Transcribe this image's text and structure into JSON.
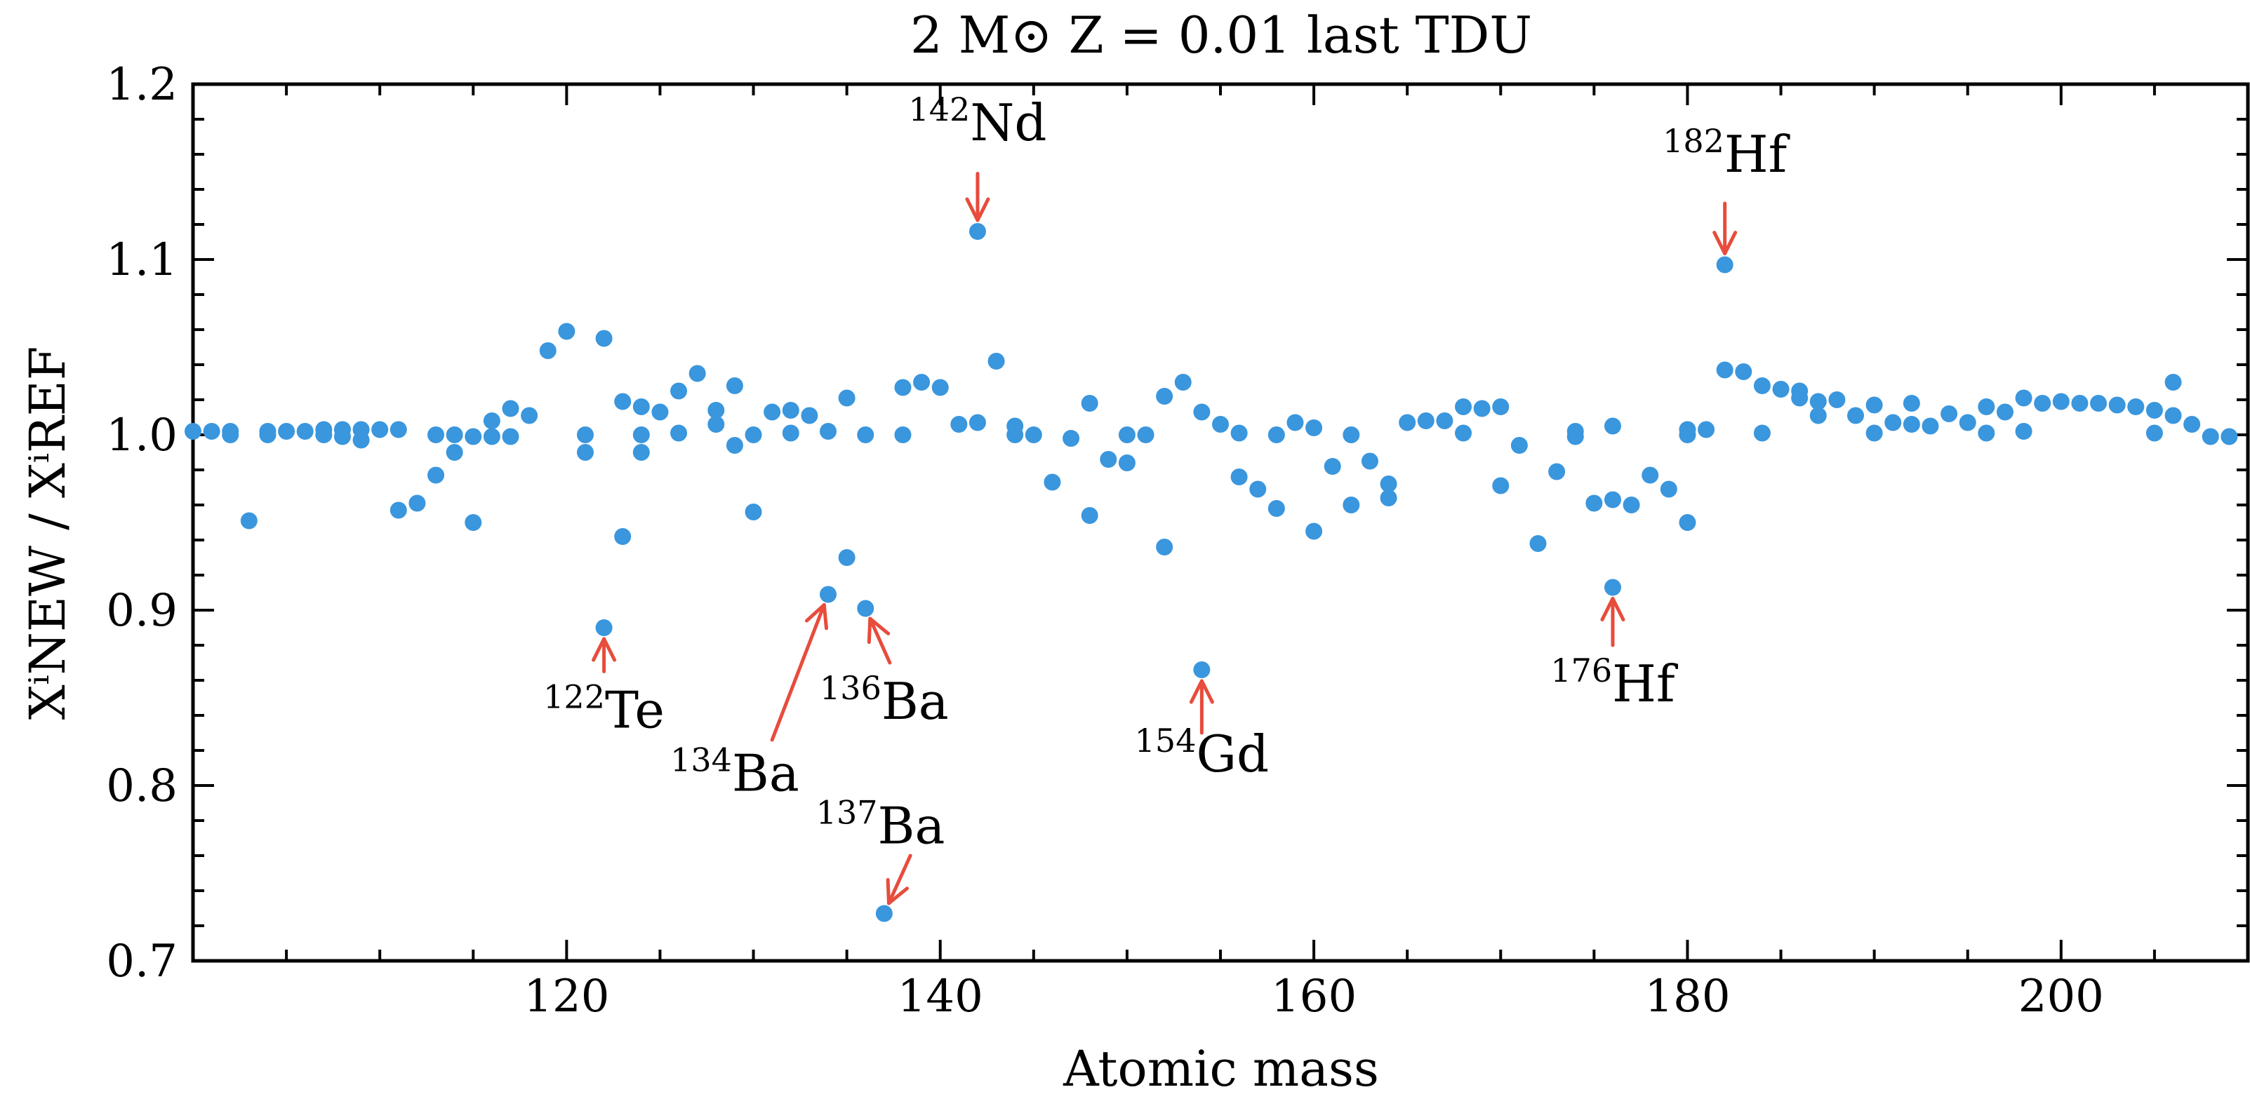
{
  "chart_data": {
    "type": "scatter",
    "title": "2 M⊙ Z = 0.01 last TDU",
    "xlabel": "Atomic mass",
    "ylabel": "XⁱNEW / XⁱREF",
    "xlim": [
      100,
      210
    ],
    "ylim": [
      0.7,
      1.2
    ],
    "xticks": [
      120,
      140,
      160,
      180,
      200
    ],
    "xtick_labels": [
      "120",
      "140",
      "160",
      "180",
      "200"
    ],
    "yticks": [
      0.7,
      0.8,
      0.9,
      1.0,
      1.1,
      1.2
    ],
    "ytick_labels": [
      "0.7",
      "0.8",
      "0.9",
      "1.0",
      "1.1",
      "1.2"
    ],
    "point_color": "#3a96dd",
    "arrow_color": "#e74c3c",
    "points": [
      {
        "x": 100,
        "y": 1.002
      },
      {
        "x": 101,
        "y": 1.002
      },
      {
        "x": 102,
        "y": 1.002
      },
      {
        "x": 102,
        "y": 1.0
      },
      {
        "x": 103,
        "y": 0.951
      },
      {
        "x": 104,
        "y": 1.002
      },
      {
        "x": 104,
        "y": 1.0
      },
      {
        "x": 105,
        "y": 1.002
      },
      {
        "x": 106,
        "y": 1.002
      },
      {
        "x": 107,
        "y": 1.003
      },
      {
        "x": 107,
        "y": 1.0
      },
      {
        "x": 108,
        "y": 1.003
      },
      {
        "x": 108,
        "y": 0.999
      },
      {
        "x": 109,
        "y": 1.003
      },
      {
        "x": 109,
        "y": 0.997
      },
      {
        "x": 110,
        "y": 1.003
      },
      {
        "x": 111,
        "y": 1.003
      },
      {
        "x": 111,
        "y": 0.957
      },
      {
        "x": 112,
        "y": 0.961
      },
      {
        "x": 113,
        "y": 1.0
      },
      {
        "x": 113,
        "y": 0.977
      },
      {
        "x": 114,
        "y": 1.0
      },
      {
        "x": 114,
        "y": 0.99
      },
      {
        "x": 115,
        "y": 0.999
      },
      {
        "x": 115,
        "y": 0.95
      },
      {
        "x": 116,
        "y": 1.008
      },
      {
        "x": 116,
        "y": 0.999
      },
      {
        "x": 117,
        "y": 1.015
      },
      {
        "x": 117,
        "y": 0.999
      },
      {
        "x": 118,
        "y": 1.011
      },
      {
        "x": 119,
        "y": 1.048
      },
      {
        "x": 120,
        "y": 1.059
      },
      {
        "x": 121,
        "y": 1.0
      },
      {
        "x": 121,
        "y": 0.99
      },
      {
        "x": 122,
        "y": 1.055
      },
      {
        "x": 122,
        "y": 0.89
      },
      {
        "x": 123,
        "y": 1.019
      },
      {
        "x": 123,
        "y": 0.942
      },
      {
        "x": 124,
        "y": 1.016
      },
      {
        "x": 124,
        "y": 1.0
      },
      {
        "x": 124,
        "y": 0.99
      },
      {
        "x": 125,
        "y": 1.013
      },
      {
        "x": 126,
        "y": 1.025
      },
      {
        "x": 126,
        "y": 1.001
      },
      {
        "x": 127,
        "y": 1.035
      },
      {
        "x": 128,
        "y": 1.014
      },
      {
        "x": 128,
        "y": 1.006
      },
      {
        "x": 129,
        "y": 1.028
      },
      {
        "x": 129,
        "y": 0.994
      },
      {
        "x": 130,
        "y": 1.0
      },
      {
        "x": 130,
        "y": 0.956
      },
      {
        "x": 131,
        "y": 1.013
      },
      {
        "x": 132,
        "y": 1.014
      },
      {
        "x": 132,
        "y": 1.001
      },
      {
        "x": 133,
        "y": 1.011
      },
      {
        "x": 134,
        "y": 1.002
      },
      {
        "x": 134,
        "y": 0.909
      },
      {
        "x": 135,
        "y": 1.021
      },
      {
        "x": 135,
        "y": 0.93
      },
      {
        "x": 136,
        "y": 1.0
      },
      {
        "x": 136,
        "y": 0.901
      },
      {
        "x": 137,
        "y": 0.727
      },
      {
        "x": 138,
        "y": 1.027
      },
      {
        "x": 138,
        "y": 1.0
      },
      {
        "x": 139,
        "y": 1.03
      },
      {
        "x": 140,
        "y": 1.027
      },
      {
        "x": 141,
        "y": 1.006
      },
      {
        "x": 142,
        "y": 1.007
      },
      {
        "x": 142,
        "y": 1.116
      },
      {
        "x": 143,
        "y": 1.042
      },
      {
        "x": 144,
        "y": 1.005
      },
      {
        "x": 144,
        "y": 1.0
      },
      {
        "x": 145,
        "y": 1.0
      },
      {
        "x": 146,
        "y": 0.973
      },
      {
        "x": 147,
        "y": 0.998
      },
      {
        "x": 148,
        "y": 1.018
      },
      {
        "x": 148,
        "y": 0.954
      },
      {
        "x": 149,
        "y": 0.986
      },
      {
        "x": 150,
        "y": 1.0
      },
      {
        "x": 150,
        "y": 0.984
      },
      {
        "x": 151,
        "y": 1.0
      },
      {
        "x": 152,
        "y": 1.022
      },
      {
        "x": 152,
        "y": 0.936
      },
      {
        "x": 153,
        "y": 1.03
      },
      {
        "x": 154,
        "y": 1.013
      },
      {
        "x": 154,
        "y": 0.866
      },
      {
        "x": 155,
        "y": 1.006
      },
      {
        "x": 156,
        "y": 1.001
      },
      {
        "x": 156,
        "y": 0.976
      },
      {
        "x": 157,
        "y": 0.969
      },
      {
        "x": 158,
        "y": 1.0
      },
      {
        "x": 158,
        "y": 0.958
      },
      {
        "x": 159,
        "y": 1.007
      },
      {
        "x": 160,
        "y": 1.004
      },
      {
        "x": 160,
        "y": 0.945
      },
      {
        "x": 161,
        "y": 0.982
      },
      {
        "x": 162,
        "y": 1.0
      },
      {
        "x": 162,
        "y": 0.96
      },
      {
        "x": 163,
        "y": 0.985
      },
      {
        "x": 164,
        "y": 0.972
      },
      {
        "x": 164,
        "y": 0.964
      },
      {
        "x": 165,
        "y": 1.007
      },
      {
        "x": 166,
        "y": 1.008
      },
      {
        "x": 167,
        "y": 1.008
      },
      {
        "x": 168,
        "y": 1.016
      },
      {
        "x": 168,
        "y": 1.001
      },
      {
        "x": 169,
        "y": 1.015
      },
      {
        "x": 170,
        "y": 1.016
      },
      {
        "x": 170,
        "y": 0.971
      },
      {
        "x": 171,
        "y": 0.994
      },
      {
        "x": 172,
        "y": 0.938
      },
      {
        "x": 173,
        "y": 0.979
      },
      {
        "x": 174,
        "y": 1.002
      },
      {
        "x": 174,
        "y": 0.999
      },
      {
        "x": 175,
        "y": 0.961
      },
      {
        "x": 176,
        "y": 1.005
      },
      {
        "x": 176,
        "y": 0.963
      },
      {
        "x": 176,
        "y": 0.913
      },
      {
        "x": 177,
        "y": 0.96
      },
      {
        "x": 178,
        "y": 0.977
      },
      {
        "x": 179,
        "y": 0.969
      },
      {
        "x": 180,
        "y": 1.003
      },
      {
        "x": 180,
        "y": 1.0
      },
      {
        "x": 180,
        "y": 0.95
      },
      {
        "x": 181,
        "y": 1.003
      },
      {
        "x": 182,
        "y": 1.097
      },
      {
        "x": 182,
        "y": 1.037
      },
      {
        "x": 183,
        "y": 1.036
      },
      {
        "x": 184,
        "y": 1.028
      },
      {
        "x": 184,
        "y": 1.001
      },
      {
        "x": 185,
        "y": 1.026
      },
      {
        "x": 186,
        "y": 1.025
      },
      {
        "x": 186,
        "y": 1.021
      },
      {
        "x": 187,
        "y": 1.019
      },
      {
        "x": 187,
        "y": 1.011
      },
      {
        "x": 188,
        "y": 1.02
      },
      {
        "x": 189,
        "y": 1.011
      },
      {
        "x": 190,
        "y": 1.017
      },
      {
        "x": 190,
        "y": 1.001
      },
      {
        "x": 191,
        "y": 1.007
      },
      {
        "x": 192,
        "y": 1.018
      },
      {
        "x": 192,
        "y": 1.006
      },
      {
        "x": 193,
        "y": 1.005
      },
      {
        "x": 194,
        "y": 1.012
      },
      {
        "x": 195,
        "y": 1.007
      },
      {
        "x": 196,
        "y": 1.016
      },
      {
        "x": 196,
        "y": 1.001
      },
      {
        "x": 197,
        "y": 1.013
      },
      {
        "x": 198,
        "y": 1.021
      },
      {
        "x": 198,
        "y": 1.002
      },
      {
        "x": 199,
        "y": 1.018
      },
      {
        "x": 200,
        "y": 1.019
      },
      {
        "x": 201,
        "y": 1.018
      },
      {
        "x": 202,
        "y": 1.018
      },
      {
        "x": 203,
        "y": 1.017
      },
      {
        "x": 204,
        "y": 1.016
      },
      {
        "x": 205,
        "y": 1.001
      },
      {
        "x": 205,
        "y": 1.014
      },
      {
        "x": 206,
        "y": 1.03
      },
      {
        "x": 206,
        "y": 1.011
      },
      {
        "x": 207,
        "y": 1.006
      },
      {
        "x": 208,
        "y": 0.999
      },
      {
        "x": 209,
        "y": 0.999
      }
    ],
    "annotations": [
      {
        "mass": "142",
        "symbol": "Nd",
        "point": [
          142,
          1.116
        ],
        "text_at": [
          142,
          1.168
        ],
        "arrow_from": [
          142,
          1.149
        ]
      },
      {
        "mass": "182",
        "symbol": "Hf",
        "point": [
          182,
          1.097
        ],
        "text_at": [
          182,
          1.15
        ],
        "arrow_from": [
          182,
          1.132
        ]
      },
      {
        "mass": "122",
        "symbol": "Te",
        "point": [
          122,
          0.89
        ],
        "text_at": [
          122,
          0.833
        ],
        "arrow_from": [
          122,
          0.865
        ]
      },
      {
        "mass": "134",
        "symbol": "Ba",
        "point": [
          134,
          0.909
        ],
        "text_at": [
          129,
          0.797
        ],
        "arrow_from": [
          131,
          0.826
        ]
      },
      {
        "mass": "136",
        "symbol": "Ba",
        "point": [
          136,
          0.901
        ],
        "text_at": [
          137,
          0.838
        ],
        "arrow_from": [
          137.3,
          0.87
        ]
      },
      {
        "mass": "154",
        "symbol": "Gd",
        "point": [
          154,
          0.866
        ],
        "text_at": [
          154,
          0.808
        ],
        "arrow_from": [
          154,
          0.83
        ]
      },
      {
        "mass": "176",
        "symbol": "Hf",
        "point": [
          176,
          0.913
        ],
        "text_at": [
          176,
          0.848
        ],
        "arrow_from": [
          176,
          0.88
        ]
      },
      {
        "mass": "137",
        "symbol": "Ba",
        "point": [
          137,
          0.727
        ],
        "text_at": [
          136.8,
          0.767
        ],
        "arrow_from": [
          138.4,
          0.76
        ]
      }
    ]
  }
}
